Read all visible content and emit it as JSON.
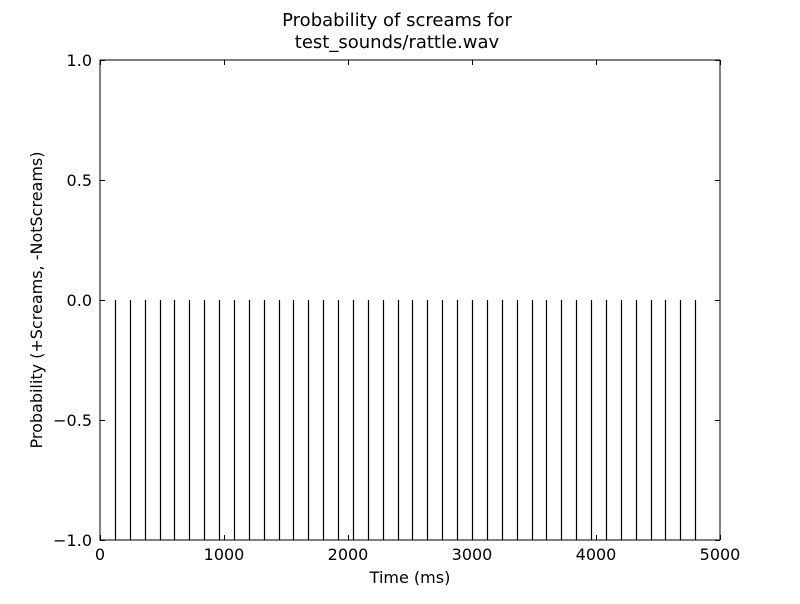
{
  "chart_data": {
    "type": "bar",
    "title_lines": [
      "Probability of screams for",
      "test_sounds/rattle.wav"
    ],
    "xlabel": "Time (ms)",
    "ylabel": "Probability (+Screams, -NotScreams)",
    "xlim": [
      0,
      5000
    ],
    "ylim": [
      -1.0,
      1.0
    ],
    "xticks": [
      0,
      1000,
      2000,
      3000,
      4000,
      5000
    ],
    "xtick_labels": [
      "0",
      "1000",
      "2000",
      "3000",
      "4000",
      "5000"
    ],
    "yticks": [
      1.0,
      0.5,
      0.0,
      -0.5,
      -1.0
    ],
    "ytick_labels": [
      "1.0",
      "0.5",
      "0.0",
      "−0.5",
      "−1.0"
    ],
    "grid": false,
    "series": [
      {
        "x": [
          120,
          240,
          360,
          480,
          600,
          720,
          840,
          960,
          1080,
          1200,
          1320,
          1440,
          1560,
          1680,
          1800,
          1920,
          2040,
          2160,
          2280,
          2400,
          2520,
          2640,
          2760,
          2880,
          3000,
          3120,
          3240,
          3360,
          3480,
          3600,
          3720,
          3840,
          3960,
          4080,
          4200,
          4320,
          4440,
          4560,
          4680,
          4800
        ],
        "values": [
          -1,
          -1,
          -1,
          -1,
          -1,
          -1,
          -1,
          -1,
          -1,
          -1,
          -1,
          -1,
          -1,
          -1,
          -1,
          -1,
          -1,
          -1,
          -1,
          -1,
          -1,
          -1,
          -1,
          -1,
          -1,
          -1,
          -1,
          -1,
          -1,
          -1,
          -1,
          -1,
          -1,
          -1,
          -1,
          -1,
          -1,
          -1,
          -1,
          -1
        ],
        "color": "#000000"
      }
    ]
  }
}
